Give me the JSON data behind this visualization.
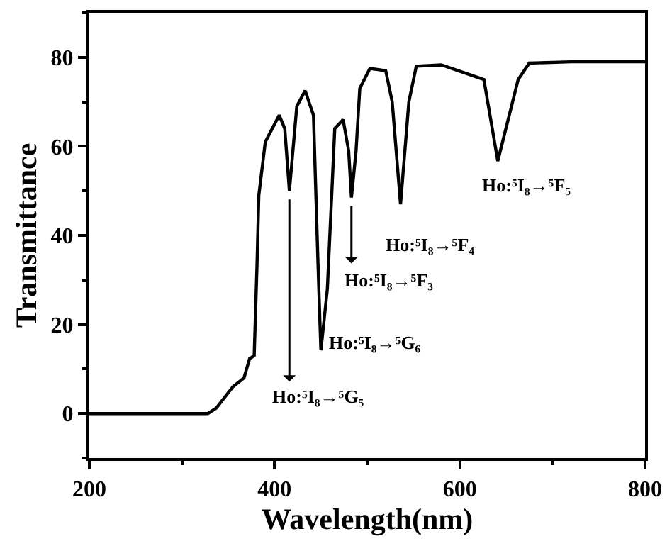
{
  "chart_data": {
    "type": "line",
    "xlabel": "Wavelength(nm)",
    "ylabel": "Transmittance",
    "x": [
      200,
      313,
      328,
      337,
      355,
      367,
      373,
      378,
      381,
      383,
      390,
      405,
      411,
      416,
      424,
      433,
      442,
      447,
      450,
      457,
      465,
      474,
      480,
      483,
      488,
      492,
      503,
      520,
      527,
      536,
      545,
      553,
      580,
      626,
      641,
      663,
      675,
      720,
      800
    ],
    "series": [
      {
        "color": "#000000",
        "values": [
          0,
          0,
          0,
          1.2,
          6,
          8,
          12.3,
          13,
          33,
          49,
          61,
          67,
          64,
          50,
          69,
          72.5,
          67,
          33,
          14.2,
          28,
          64,
          66,
          59,
          48.5,
          59,
          73,
          77.5,
          77,
          70,
          47,
          70,
          78,
          78.3,
          75,
          56.7,
          75,
          78.7,
          79,
          79
        ]
      }
    ],
    "annotations": [
      {
        "text": "Ho:⁵I₈→⁵F₅",
        "x": 641,
        "y": 56.7
      },
      {
        "text": "Ho:⁵I₈→⁵F₄",
        "x": 536,
        "y": 47
      },
      {
        "text": "Ho:⁵I₈→⁵F₃",
        "x": 483,
        "y": 48.5
      },
      {
        "text": "Ho:⁵I₈→⁵G₆",
        "x": 450,
        "y": 14.2
      },
      {
        "text": "Ho:⁵I₈→⁵G₅",
        "x": 416,
        "y": 50
      }
    ],
    "xlim": [
      200,
      800
    ],
    "xticks": [
      200,
      400,
      600,
      800
    ],
    "ylim": [
      -10,
      90
    ],
    "yticks": [
      0,
      20,
      40,
      60,
      80
    ],
    "marker": "none",
    "line_style": "solid"
  }
}
